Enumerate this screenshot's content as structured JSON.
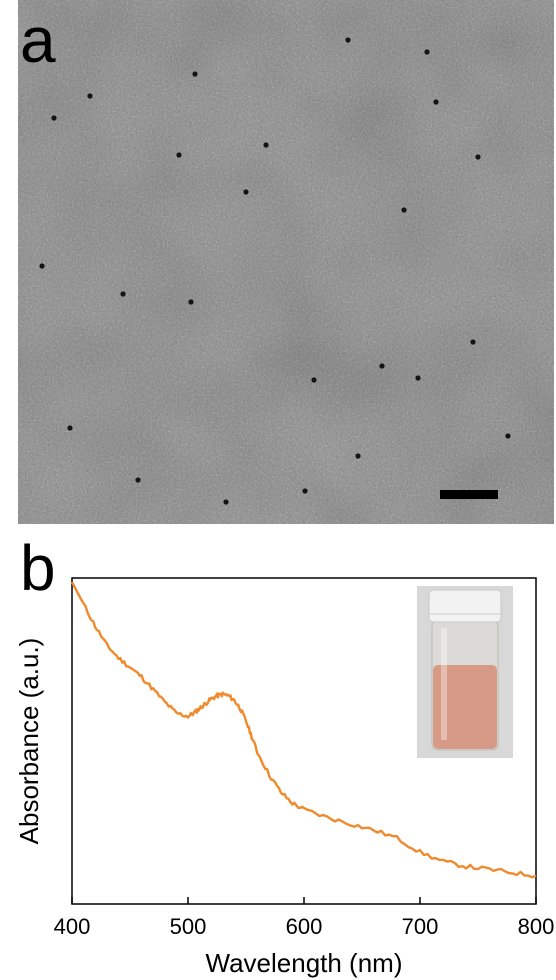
{
  "panels": {
    "a": {
      "label": "a"
    },
    "b": {
      "label": "b"
    }
  },
  "chart_data": {
    "type": "line",
    "title": "",
    "xlabel": "Wavelength (nm)",
    "ylabel": "Absorbance (a.u.)",
    "xlim": [
      400,
      800
    ],
    "ylim": [
      0,
      1
    ],
    "xticks": [
      "400",
      "500",
      "600",
      "700",
      "800"
    ],
    "grid": false,
    "color": "#f08a2c",
    "x": [
      400,
      410,
      420,
      430,
      440,
      450,
      460,
      470,
      480,
      490,
      500,
      505,
      510,
      515,
      520,
      525,
      530,
      535,
      540,
      545,
      550,
      555,
      560,
      570,
      580,
      590,
      600,
      620,
      640,
      660,
      680,
      700,
      720,
      740,
      760,
      780,
      800
    ],
    "y": [
      1.0,
      0.93,
      0.86,
      0.8,
      0.76,
      0.73,
      0.7,
      0.66,
      0.62,
      0.585,
      0.575,
      0.585,
      0.6,
      0.615,
      0.63,
      0.64,
      0.645,
      0.64,
      0.625,
      0.6,
      0.56,
      0.51,
      0.46,
      0.39,
      0.335,
      0.3,
      0.28,
      0.255,
      0.235,
      0.215,
      0.19,
      0.145,
      0.115,
      0.1,
      0.09,
      0.08,
      0.07
    ]
  },
  "figure": {
    "tem_image_note_colors": {
      "background": "#8f8f8f",
      "particle": "#101010",
      "scalebar": "#000000"
    },
    "vial_colors": {
      "cap": "#f2f2f2",
      "glass": "#dcdad6",
      "liquid": "#d79a87",
      "background": "#d8d8d8"
    }
  }
}
